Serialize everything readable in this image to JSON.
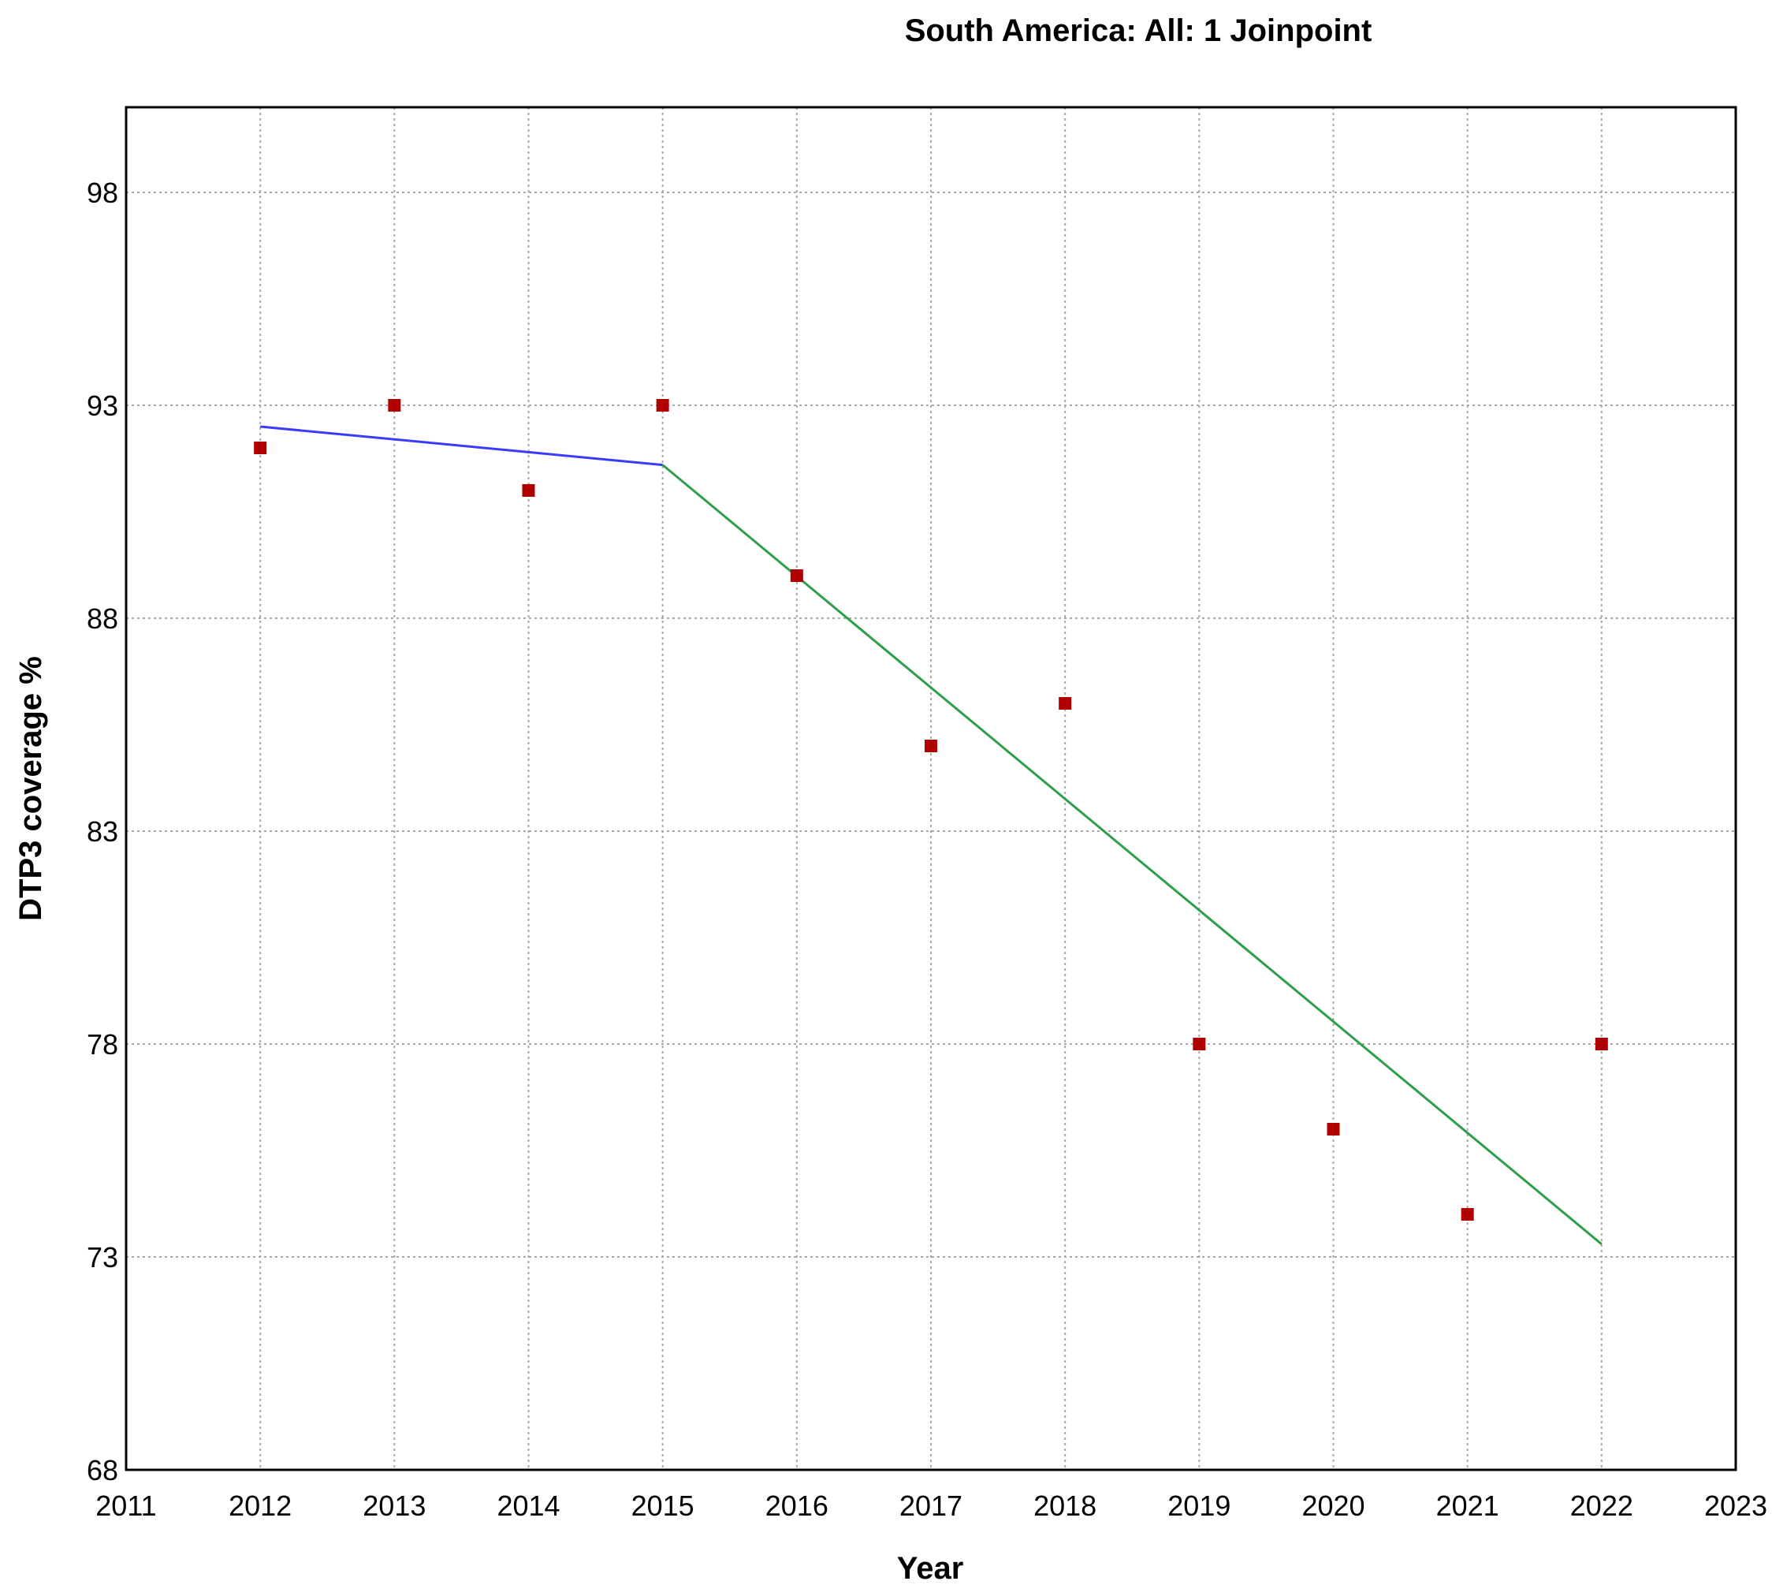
{
  "chart_data": {
    "type": "scatter",
    "title": "South America: All: 1 Joinpoint",
    "xlabel": "Year",
    "ylabel": "DTP3 coverage %",
    "xlim": [
      2011,
      2023
    ],
    "ylim": [
      68,
      100
    ],
    "x_ticks": [
      2011,
      2012,
      2013,
      2014,
      2015,
      2016,
      2017,
      2018,
      2019,
      2020,
      2021,
      2022,
      2023
    ],
    "y_ticks": [
      68,
      73,
      78,
      83,
      88,
      93,
      98
    ],
    "grid": true,
    "points": {
      "color": "#b00000",
      "x": [
        2012,
        2013,
        2014,
        2015,
        2016,
        2017,
        2018,
        2019,
        2020,
        2021,
        2022
      ],
      "y": [
        92,
        93,
        91,
        93,
        89,
        85,
        86,
        78,
        76,
        74,
        78
      ]
    },
    "segments": [
      {
        "color": "#3b3bff",
        "x": [
          2012,
          2015
        ],
        "y": [
          92.5,
          91.6
        ]
      },
      {
        "color": "#2e9e4a",
        "x": [
          2015,
          2022
        ],
        "y": [
          91.6,
          73.3
        ]
      }
    ]
  }
}
